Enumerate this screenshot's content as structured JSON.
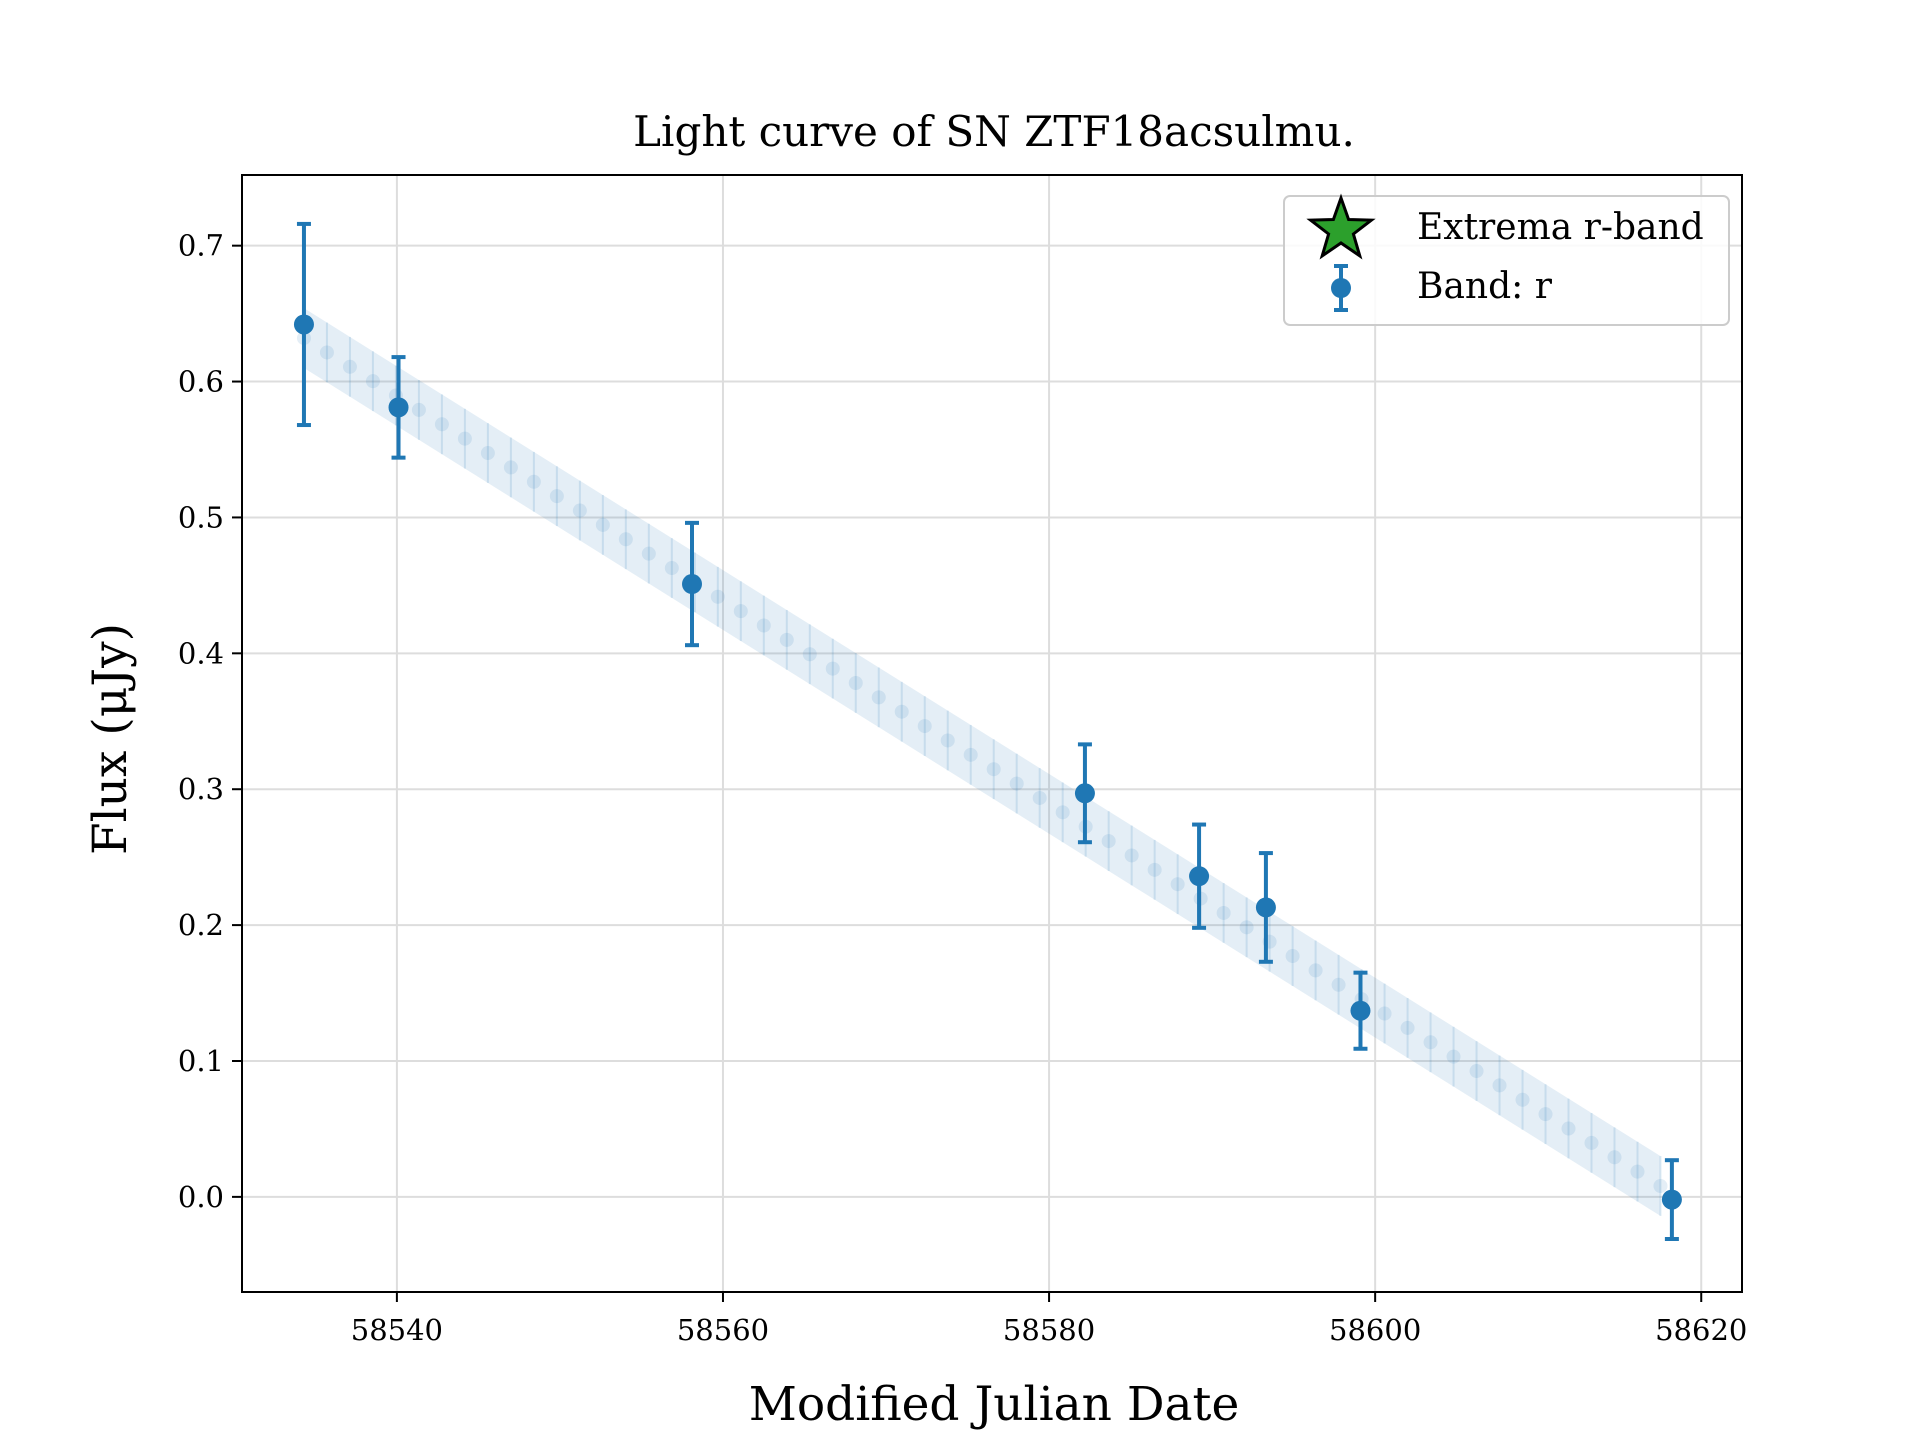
{
  "chart_data": {
    "type": "scatter",
    "title": "Light curve of SN ZTF18acsulmu.",
    "xlabel": "Modified Julian Date",
    "ylabel": "Flux (μJy)",
    "xlim": [
      58530.5,
      58622.5
    ],
    "ylim": [
      -0.07,
      0.752
    ],
    "xticks": [
      58540,
      58560,
      58580,
      58600,
      58620
    ],
    "yticks": [
      0.0,
      0.1,
      0.2,
      0.3,
      0.4,
      0.5,
      0.6,
      0.7
    ],
    "ytick_labels": [
      "0.0",
      "0.1",
      "0.2",
      "0.3",
      "0.4",
      "0.5",
      "0.6",
      "0.7"
    ],
    "grid": true,
    "legend_position": "top-right",
    "colors": {
      "data": "#1f77b4",
      "extrema": "#2ca02c",
      "grid": "#dddddd"
    },
    "legend": [
      {
        "label": "Extrema r-band",
        "marker": "star"
      },
      {
        "label": "Band:  r",
        "marker": "errorbar-circle"
      }
    ],
    "series": [
      {
        "name": "Band:  r",
        "x": [
          58534.3,
          58540.1,
          58558.1,
          58582.2,
          58589.2,
          58593.3,
          58599.1,
          58618.2
        ],
        "y": [
          0.642,
          0.581,
          0.451,
          0.297,
          0.236,
          0.213,
          0.137,
          -0.002
        ],
        "yerr": [
          0.074,
          0.037,
          0.045,
          0.036,
          0.038,
          0.04,
          0.028,
          0.029
        ]
      }
    ],
    "model": {
      "x_start": 58534.3,
      "x_end": 58617.5,
      "y_start": 0.632,
      "y_end": 0.008,
      "band_halfwidth": 0.022,
      "n_points": 60
    }
  }
}
